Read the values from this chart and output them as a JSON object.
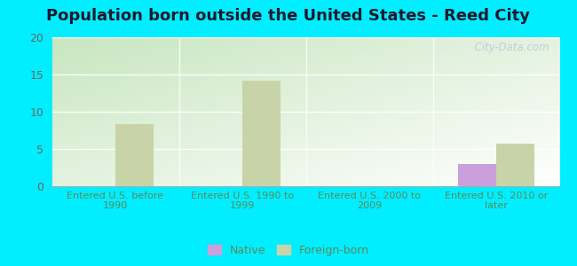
{
  "title": "Population born outside the United States - Reed City",
  "categories": [
    "Entered U.S. before\n1990",
    "Entered U.S. 1990 to\n1999",
    "Entered U.S. 2000 to\n2009",
    "Entered U.S. 2010 or\nlater"
  ],
  "native_values": [
    0,
    0,
    0,
    3.0
  ],
  "foreign_values": [
    8.3,
    14.2,
    0,
    5.7
  ],
  "native_color": "#c9a0dc",
  "foreign_color": "#c8d4a8",
  "ylim": [
    0,
    20
  ],
  "yticks": [
    0,
    5,
    10,
    15,
    20
  ],
  "bar_width": 0.3,
  "background_outer": "#00eeff",
  "bg_top_left": "#c8e6c0",
  "bg_bottom_right": "#ffffff",
  "title_fontsize": 13,
  "tick_label_color": "#5a8a5a",
  "ytick_label_color": "#666666",
  "watermark_text": "  City-Data.com",
  "legend_native_label": "Native",
  "legend_foreign_label": "Foreign-born"
}
